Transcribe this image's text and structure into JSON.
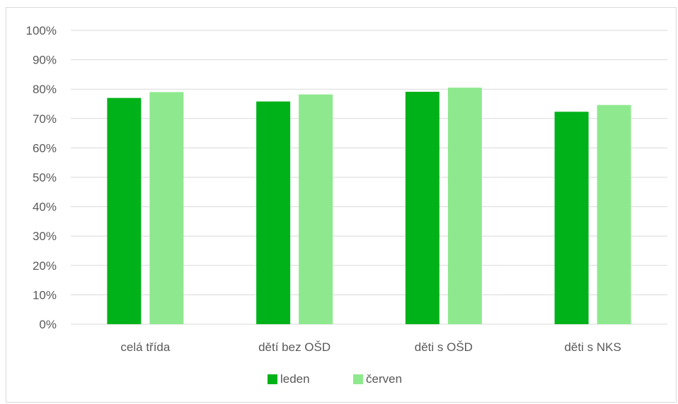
{
  "chart_data": {
    "type": "bar",
    "categories": [
      "celá třída",
      "dětí bez OŠD",
      "děti s OŠD",
      "děti s NKS"
    ],
    "series": [
      {
        "name": "leden",
        "values": [
          77,
          75.8,
          79.1,
          72.3
        ],
        "color": "#00b21a"
      },
      {
        "name": "červen",
        "values": [
          79,
          78.2,
          80.5,
          74.6
        ],
        "color": "#8ee98e"
      }
    ],
    "yticks": [
      "0%",
      "10%",
      "20%",
      "30%",
      "40%",
      "50%",
      "60%",
      "70%",
      "80%",
      "90%",
      "100%"
    ],
    "ylim": [
      0,
      100
    ],
    "grid": true,
    "legend_position": "bottom",
    "gridline_color": "#d9d9d9",
    "text_color": "#595959"
  }
}
